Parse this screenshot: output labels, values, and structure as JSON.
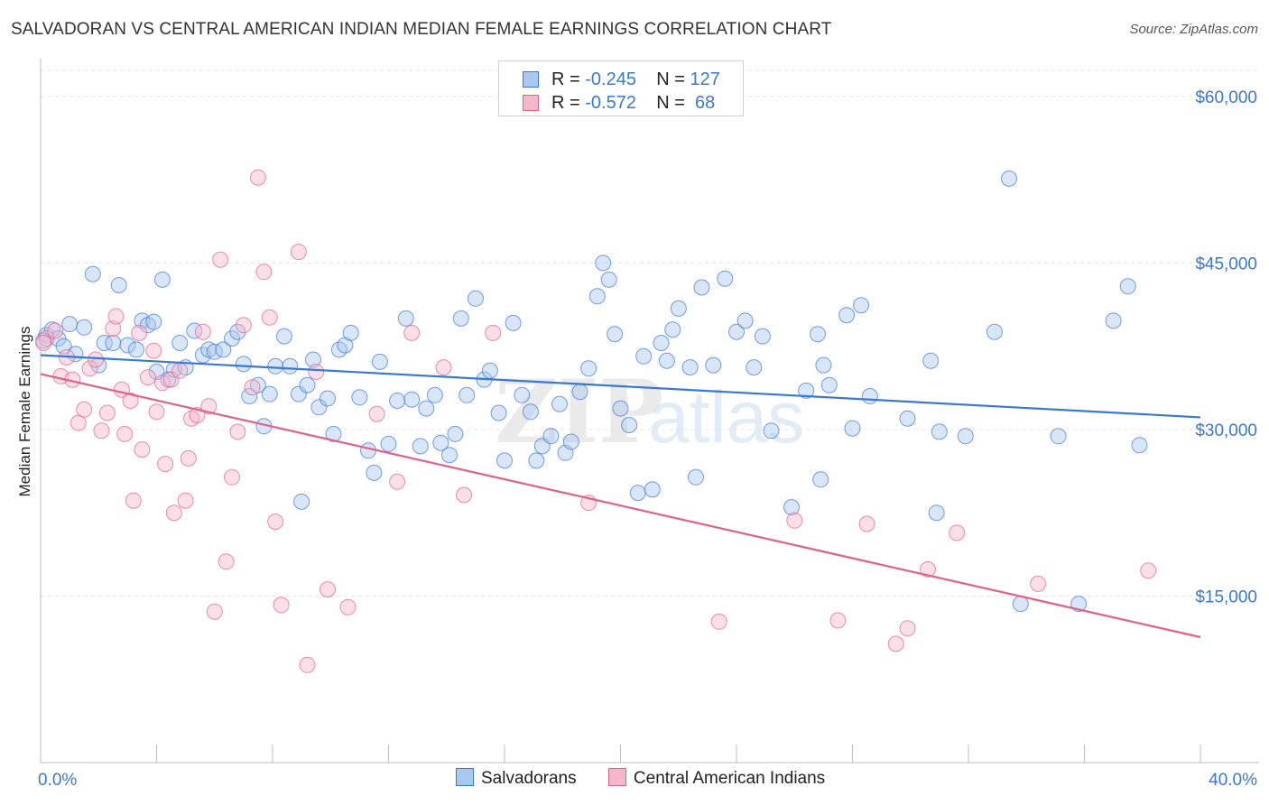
{
  "title": "SALVADORAN VS CENTRAL AMERICAN INDIAN MEDIAN FEMALE EARNINGS CORRELATION CHART",
  "source": "Source: ZipAtlas.com",
  "watermark": {
    "zip": "ZIP",
    "atlas": "atlas"
  },
  "colors": {
    "blue": "#3a78d4",
    "blue_fill": "#a9c8ef",
    "pink": "#e0608e",
    "pink_fill": "#f5b8cb",
    "grid": "#e3e3e3"
  },
  "legend": {
    "rows": [
      {
        "r_label": "R = ",
        "r_value": "-0.245",
        "n_label": "N = ",
        "n_value": "127"
      },
      {
        "r_label": "R = ",
        "r_value": "-0.572",
        "n_label": "N = ",
        "n_value": " 68"
      }
    ],
    "bottom": [
      "Salvadorans",
      "Central American Indians"
    ]
  },
  "chart_data": {
    "type": "scatter",
    "title": "SALVADORAN VS CENTRAL AMERICAN INDIAN MEDIAN FEMALE EARNINGS CORRELATION CHART",
    "xlabel": "",
    "ylabel": "Median Female Earnings",
    "xlim": [
      0,
      40
    ],
    "ylim": [
      0,
      63000
    ],
    "x_tick_labels": [
      "0.0%",
      "40.0%"
    ],
    "y_ticks": [
      15000,
      30000,
      45000,
      60000
    ],
    "y_tick_labels": [
      "$15,000",
      "$30,000",
      "$45,000",
      "$60,000"
    ],
    "grid": true,
    "legend_position": "top-center",
    "series": [
      {
        "name": "Salvadorans",
        "color": "#3a78d4",
        "trend": {
          "x": [
            0,
            40
          ],
          "y": [
            36700,
            31100
          ]
        },
        "points": [
          [
            0.2,
            38500
          ],
          [
            0.4,
            39000
          ],
          [
            0.6,
            38200
          ],
          [
            0.8,
            37500
          ],
          [
            1.0,
            39500
          ],
          [
            1.2,
            36800
          ],
          [
            1.5,
            39200
          ],
          [
            1.8,
            44000
          ],
          [
            2.0,
            35800
          ],
          [
            2.2,
            37800
          ],
          [
            2.5,
            37800
          ],
          [
            2.7,
            43000
          ],
          [
            3.0,
            37600
          ],
          [
            3.3,
            37200
          ],
          [
            3.5,
            39800
          ],
          [
            3.7,
            39400
          ],
          [
            3.9,
            39700
          ],
          [
            4.0,
            35200
          ],
          [
            4.2,
            43500
          ],
          [
            4.4,
            34500
          ],
          [
            4.6,
            35400
          ],
          [
            4.8,
            37800
          ],
          [
            5.0,
            35600
          ],
          [
            5.3,
            38900
          ],
          [
            5.6,
            36700
          ],
          [
            5.8,
            37200
          ],
          [
            6.0,
            37000
          ],
          [
            6.3,
            37200
          ],
          [
            6.6,
            38200
          ],
          [
            6.8,
            38800
          ],
          [
            7.0,
            35900
          ],
          [
            7.2,
            33000
          ],
          [
            7.5,
            34000
          ],
          [
            7.7,
            30300
          ],
          [
            7.9,
            33200
          ],
          [
            8.1,
            35700
          ],
          [
            8.4,
            38400
          ],
          [
            8.6,
            35700
          ],
          [
            8.9,
            33200
          ],
          [
            9.2,
            34000
          ],
          [
            9.4,
            36300
          ],
          [
            9.6,
            32000
          ],
          [
            9.9,
            32800
          ],
          [
            10.1,
            29600
          ],
          [
            10.3,
            37200
          ],
          [
            10.5,
            37600
          ],
          [
            10.7,
            38700
          ],
          [
            11.0,
            32900
          ],
          [
            11.3,
            28100
          ],
          [
            11.5,
            26100
          ],
          [
            11.7,
            36100
          ],
          [
            12.0,
            28700
          ],
          [
            12.3,
            32600
          ],
          [
            12.6,
            40000
          ],
          [
            12.8,
            32700
          ],
          [
            13.1,
            28500
          ],
          [
            13.3,
            31900
          ],
          [
            13.6,
            33100
          ],
          [
            13.8,
            28800
          ],
          [
            14.1,
            27700
          ],
          [
            14.3,
            29600
          ],
          [
            14.5,
            40000
          ],
          [
            14.7,
            33100
          ],
          [
            15.0,
            41800
          ],
          [
            15.3,
            34500
          ],
          [
            15.5,
            35300
          ],
          [
            15.8,
            31500
          ],
          [
            16.0,
            27200
          ],
          [
            16.3,
            39600
          ],
          [
            16.6,
            33100
          ],
          [
            16.9,
            31600
          ],
          [
            17.1,
            27200
          ],
          [
            17.3,
            28500
          ],
          [
            17.6,
            29400
          ],
          [
            17.9,
            32300
          ],
          [
            18.1,
            27900
          ],
          [
            18.3,
            28900
          ],
          [
            18.6,
            33400
          ],
          [
            18.9,
            35500
          ],
          [
            19.2,
            42000
          ],
          [
            19.4,
            45000
          ],
          [
            19.6,
            43500
          ],
          [
            19.8,
            38600
          ],
          [
            20.0,
            31900
          ],
          [
            20.3,
            30400
          ],
          [
            20.6,
            24300
          ],
          [
            20.8,
            36600
          ],
          [
            21.1,
            24600
          ],
          [
            21.4,
            37800
          ],
          [
            21.6,
            36200
          ],
          [
            21.8,
            39000
          ],
          [
            22.0,
            40900
          ],
          [
            22.4,
            35600
          ],
          [
            22.6,
            25700
          ],
          [
            22.8,
            42800
          ],
          [
            23.2,
            35800
          ],
          [
            23.6,
            43600
          ],
          [
            24.0,
            38800
          ],
          [
            24.3,
            39800
          ],
          [
            24.6,
            35600
          ],
          [
            24.9,
            38400
          ],
          [
            25.2,
            29900
          ],
          [
            25.9,
            23000
          ],
          [
            26.4,
            33500
          ],
          [
            26.8,
            38600
          ],
          [
            26.9,
            25500
          ],
          [
            27.0,
            35800
          ],
          [
            27.2,
            34000
          ],
          [
            27.8,
            40300
          ],
          [
            28.0,
            30100
          ],
          [
            28.3,
            41200
          ],
          [
            28.6,
            33000
          ],
          [
            29.9,
            31000
          ],
          [
            30.7,
            36200
          ],
          [
            30.9,
            22500
          ],
          [
            31.0,
            29800
          ],
          [
            31.9,
            29400
          ],
          [
            32.9,
            38800
          ],
          [
            33.4,
            52600
          ],
          [
            33.8,
            14300
          ],
          [
            35.1,
            29400
          ],
          [
            35.8,
            14300
          ],
          [
            37.0,
            39800
          ],
          [
            37.5,
            42900
          ],
          [
            37.9,
            28600
          ],
          [
            0.1,
            38000
          ],
          [
            9.0,
            23500
          ]
        ]
      },
      {
        "name": "Central American Indians",
        "color": "#e0608e",
        "trend": {
          "x": [
            0,
            40
          ],
          "y": [
            35000,
            11300
          ]
        },
        "points": [
          [
            0.2,
            38200
          ],
          [
            0.5,
            38900
          ],
          [
            0.7,
            34800
          ],
          [
            0.9,
            36500
          ],
          [
            1.1,
            34500
          ],
          [
            1.3,
            30600
          ],
          [
            1.5,
            31800
          ],
          [
            1.7,
            35500
          ],
          [
            1.9,
            36300
          ],
          [
            2.1,
            29900
          ],
          [
            2.3,
            31500
          ],
          [
            2.5,
            39100
          ],
          [
            2.6,
            40200
          ],
          [
            2.8,
            33600
          ],
          [
            2.9,
            29600
          ],
          [
            3.1,
            32600
          ],
          [
            3.2,
            23600
          ],
          [
            3.4,
            38700
          ],
          [
            3.5,
            28200
          ],
          [
            3.7,
            34700
          ],
          [
            3.9,
            37100
          ],
          [
            4.0,
            31600
          ],
          [
            4.2,
            34200
          ],
          [
            4.3,
            26900
          ],
          [
            4.5,
            34500
          ],
          [
            4.6,
            22500
          ],
          [
            4.8,
            35300
          ],
          [
            5.0,
            23600
          ],
          [
            5.1,
            27400
          ],
          [
            5.2,
            31000
          ],
          [
            5.4,
            31300
          ],
          [
            5.6,
            38800
          ],
          [
            5.8,
            32100
          ],
          [
            6.0,
            13600
          ],
          [
            6.2,
            45300
          ],
          [
            6.4,
            18100
          ],
          [
            6.6,
            25700
          ],
          [
            6.8,
            29800
          ],
          [
            7.0,
            39400
          ],
          [
            7.3,
            33800
          ],
          [
            7.5,
            52700
          ],
          [
            7.7,
            44200
          ],
          [
            7.9,
            40100
          ],
          [
            8.1,
            21700
          ],
          [
            8.3,
            14200
          ],
          [
            8.9,
            46000
          ],
          [
            9.2,
            8800
          ],
          [
            9.5,
            35200
          ],
          [
            9.9,
            15600
          ],
          [
            10.6,
            14000
          ],
          [
            11.6,
            31400
          ],
          [
            12.3,
            25300
          ],
          [
            12.8,
            38700
          ],
          [
            13.9,
            35600
          ],
          [
            14.6,
            24100
          ],
          [
            15.6,
            38700
          ],
          [
            18.9,
            23400
          ],
          [
            23.4,
            12700
          ],
          [
            26.0,
            21800
          ],
          [
            27.5,
            12800
          ],
          [
            28.5,
            21500
          ],
          [
            29.5,
            10700
          ],
          [
            29.9,
            12100
          ],
          [
            30.6,
            17400
          ],
          [
            31.6,
            20700
          ],
          [
            34.4,
            16100
          ],
          [
            38.2,
            17300
          ],
          [
            0.1,
            37800
          ]
        ]
      }
    ]
  }
}
